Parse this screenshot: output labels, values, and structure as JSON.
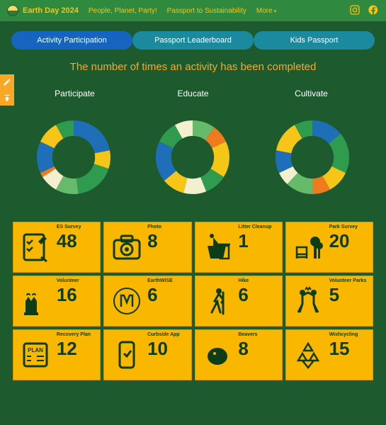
{
  "nav": {
    "brand": "Earth Day 2024",
    "links": [
      "People, Planet, Party!",
      "Passport to Sustainability",
      "More"
    ],
    "more_caret": "▾"
  },
  "pills": [
    {
      "label": "Activity Participation",
      "active": true
    },
    {
      "label": "Passport Leaderboard",
      "active": false
    },
    {
      "label": "Kids Passport",
      "active": false
    }
  ],
  "headline": "The number of times an activity has been completed",
  "columns": [
    "Participate",
    "Educate",
    "Cultivate"
  ],
  "palette": {
    "blue": "#1e6fb8",
    "green1": "#2e9b4f",
    "green2": "#66bb6a",
    "yellow": "#f5c518",
    "orange": "#ef7b1f",
    "cream": "#f4efcf",
    "teal": "#1b8a9e"
  },
  "donuts": {
    "inner_ratio": 0.58,
    "participate": [
      {
        "color": "#1e6fb8",
        "pct": 22
      },
      {
        "color": "#f5c518",
        "pct": 8
      },
      {
        "color": "#2e9b4f",
        "pct": 18
      },
      {
        "color": "#66bb6a",
        "pct": 10
      },
      {
        "color": "#f4efcf",
        "pct": 8
      },
      {
        "color": "#ef7b1f",
        "pct": 2
      },
      {
        "color": "#1e6fb8",
        "pct": 14
      },
      {
        "color": "#f5c518",
        "pct": 10
      },
      {
        "color": "#2e9b4f",
        "pct": 8
      }
    ],
    "educate": [
      {
        "color": "#66bb6a",
        "pct": 10
      },
      {
        "color": "#ef7b1f",
        "pct": 8
      },
      {
        "color": "#f5c518",
        "pct": 16
      },
      {
        "color": "#2e9b4f",
        "pct": 10
      },
      {
        "color": "#f4efcf",
        "pct": 10
      },
      {
        "color": "#f5c518",
        "pct": 10
      },
      {
        "color": "#1e6fb8",
        "pct": 18
      },
      {
        "color": "#2e9b4f",
        "pct": 10
      },
      {
        "color": "#f4efcf",
        "pct": 8
      }
    ],
    "cultivate": [
      {
        "color": "#1e6fb8",
        "pct": 14
      },
      {
        "color": "#2e9b4f",
        "pct": 18
      },
      {
        "color": "#f5c518",
        "pct": 10
      },
      {
        "color": "#ef7b1f",
        "pct": 8
      },
      {
        "color": "#66bb6a",
        "pct": 12
      },
      {
        "color": "#f4efcf",
        "pct": 6
      },
      {
        "color": "#1e6fb8",
        "pct": 10
      },
      {
        "color": "#f5c518",
        "pct": 14
      },
      {
        "color": "#2e9b4f",
        "pct": 8
      }
    ]
  },
  "tiles": [
    {
      "label": "ES Survey",
      "value": "48",
      "icon": "checklist"
    },
    {
      "label": "Photo",
      "value": "8",
      "icon": "camera"
    },
    {
      "label": "Litter Cleanup",
      "value": "1",
      "icon": "trash"
    },
    {
      "label": "Park Survey",
      "value": "20",
      "icon": "park"
    },
    {
      "label": "Volunteer",
      "value": "16",
      "icon": "hands"
    },
    {
      "label": "EarthWISE",
      "value": "6",
      "icon": "badge"
    },
    {
      "label": "Hike",
      "value": "6",
      "icon": "hiker"
    },
    {
      "label": "Volunteer Parks",
      "value": "5",
      "icon": "highfive"
    },
    {
      "label": "Recovery Plan",
      "value": "12",
      "icon": "plan"
    },
    {
      "label": "Curbside App",
      "value": "10",
      "icon": "phone"
    },
    {
      "label": "Beavers",
      "value": "8",
      "icon": "beaver"
    },
    {
      "label": "Wishcycling",
      "value": "15",
      "icon": "recycle"
    }
  ]
}
